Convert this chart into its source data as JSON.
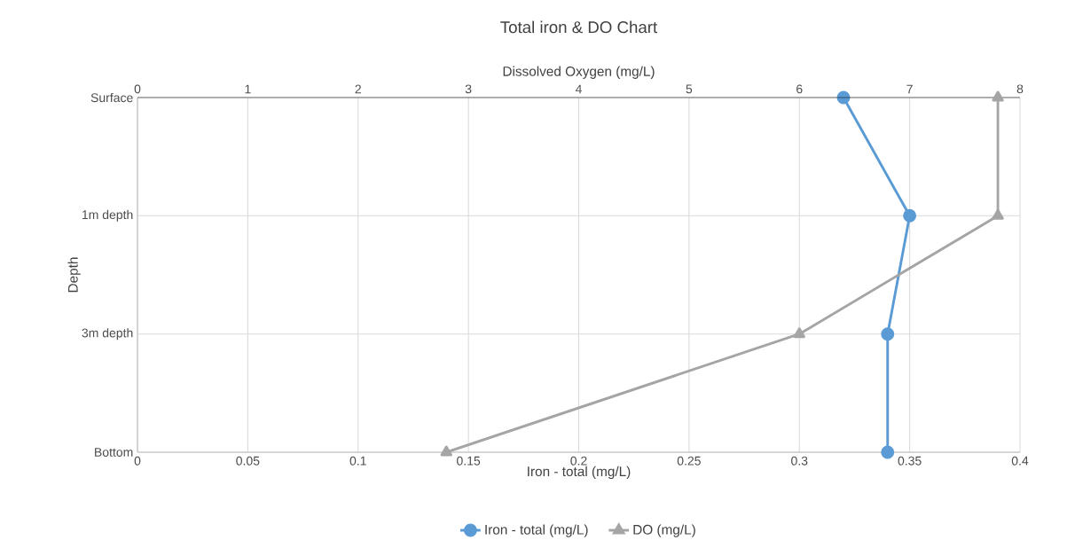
{
  "chart_data": {
    "type": "line",
    "title": "Total iron & DO Chart",
    "orientation": "horizontal",
    "categories": [
      "Surface",
      "1m depth",
      "3m depth",
      "Bottom"
    ],
    "series": [
      {
        "name": "Iron - total (mg/L)",
        "color": "#5b9bd5",
        "values": [
          0.32,
          0.35,
          0.34,
          0.34
        ],
        "marker": "circle"
      },
      {
        "name": "DO (mg/L)",
        "color": "#a5a5a5",
        "values": [
          7.8,
          7.8,
          6,
          2.8
        ],
        "marker": "triangle",
        "axis": "x2"
      }
    ],
    "xlabel": "Iron - total (mg/L)",
    "x2label": "Dissolved Oxygen (mg/L)",
    "ylabel": "Depth",
    "xlim": [
      0,
      0.4
    ],
    "xticks": [
      0,
      0.05,
      0.1,
      0.15,
      0.2,
      0.25,
      0.3,
      0.35,
      0.4
    ],
    "x2lim": [
      0,
      8
    ],
    "x2ticks": [
      0,
      1,
      2,
      3,
      4,
      5,
      6,
      7,
      8
    ],
    "grid": true,
    "legend": "bottom",
    "line_style": "solid"
  }
}
